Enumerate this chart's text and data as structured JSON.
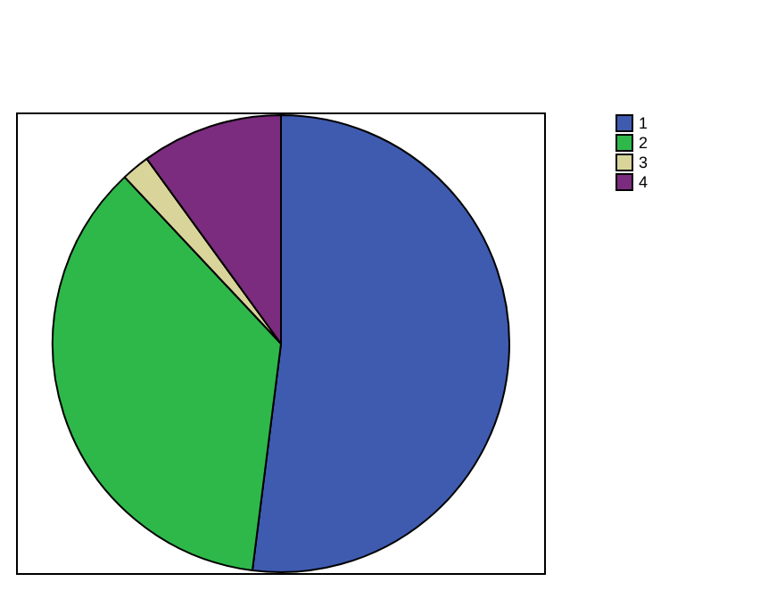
{
  "chart_data": {
    "type": "pie",
    "categories": [
      "1",
      "2",
      "3",
      "4"
    ],
    "values": [
      52,
      36,
      2,
      10
    ],
    "colors": [
      "#3f5bb0",
      "#2eb84a",
      "#d9d59a",
      "#7b2c7e"
    ],
    "legend": "top right"
  }
}
